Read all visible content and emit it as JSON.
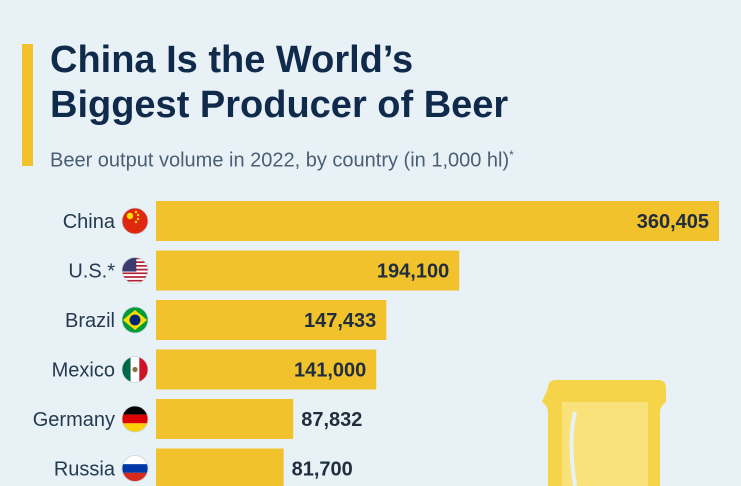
{
  "title_line1": "China Is the World’s",
  "title_line2": "Biggest Producer of Beer",
  "subtitle": "Beer output volume in 2022, by country (in 1,000 hl)",
  "subtitle_mark": "*",
  "colors": {
    "bar": "#f2c22d",
    "background": "#e8f1f6",
    "title": "#0f2a4a",
    "jug": "#f5d44a"
  },
  "chart_data": {
    "type": "bar",
    "orientation": "horizontal",
    "title": "China Is the World’s Biggest Producer of Beer",
    "subtitle": "Beer output volume in 2022, by country (in 1,000 hl)*",
    "categories": [
      "China",
      "U.S.*",
      "Brazil",
      "Mexico",
      "Germany",
      "Russia"
    ],
    "values": [
      360405,
      194100,
      147433,
      141000,
      87832,
      81700
    ],
    "value_labels": [
      "360,405",
      "194,100",
      "147,433",
      "141,000",
      "87,832",
      "81,700"
    ],
    "flags": [
      "china-flag-icon",
      "us-flag-icon",
      "brazil-flag-icon",
      "mexico-flag-icon",
      "germany-flag-icon",
      "russia-flag-icon"
    ],
    "xlim": [
      0,
      360405
    ],
    "grid": false,
    "legend": "none"
  }
}
